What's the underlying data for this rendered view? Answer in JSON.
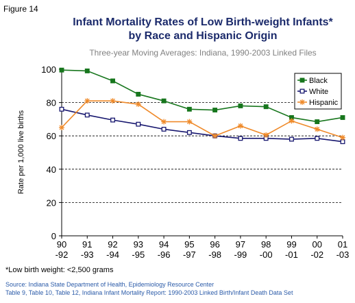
{
  "chart_data": {
    "type": "line",
    "figure_label": "Figure 14",
    "title": [
      "Infant Mortality Rates of Low Birth-weight Infants*",
      "by Race and Hispanic Origin"
    ],
    "subtitle": "Three-year Moving Averages: Indiana, 1990-2003 Linked Files",
    "y_label": "Rate per 1,000 live births",
    "categories": [
      "90\n-92",
      "91\n-93",
      "92\n-94",
      "93\n-95",
      "94\n-96",
      "95\n-97",
      "96\n-98",
      "97\n-99",
      "98\n-00",
      "99\n-01",
      "00\n-02",
      "01\n-03"
    ],
    "series": [
      {
        "name": "Black",
        "color": "#17761d",
        "marker": "filled-square",
        "values": [
          99.5,
          99,
          93,
          85,
          81,
          76,
          75.5,
          78,
          77.5,
          71,
          68.5,
          71
        ]
      },
      {
        "name": "White",
        "color": "#16166e",
        "marker": "open-square",
        "values": [
          76,
          72.5,
          69.5,
          67,
          64,
          62,
          60,
          58.5,
          58.5,
          58,
          58.5,
          56.5
        ]
      },
      {
        "name": "Hispanic",
        "color": "#ef8a2a",
        "marker": "star",
        "values": [
          65,
          81,
          81,
          79,
          68.5,
          68.5,
          60,
          66,
          60.5,
          69,
          64,
          59
        ]
      }
    ],
    "ylim": [
      0,
      100
    ],
    "yticks": [
      0,
      20,
      40,
      60,
      80,
      100
    ],
    "grid": true,
    "legend": "top-right",
    "footnote": "*Low birth weight: <2,500 grams",
    "source": [
      "Source: Indiana State Department of Health, Epidemiology Resource Center",
      "Table 9, Table 10, Table 12, Indiana Infant Mortality Report: 1990-2003 Linked Birth/Infant Death Data Set"
    ]
  }
}
